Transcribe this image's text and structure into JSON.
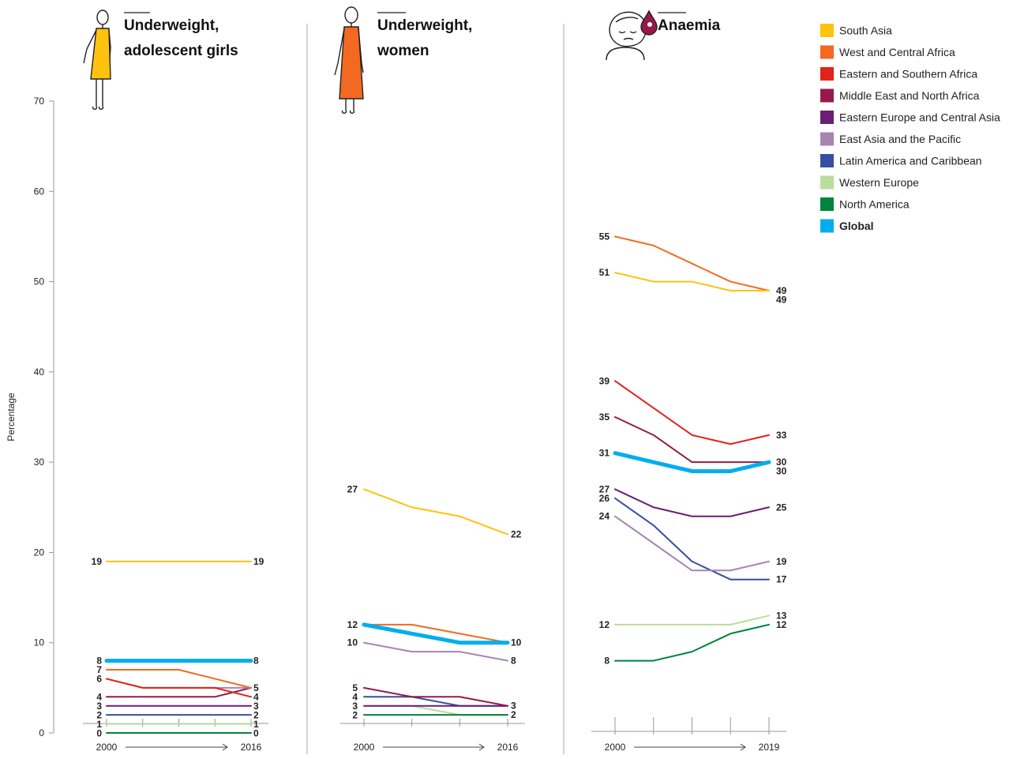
{
  "y_axis": {
    "label": "Percentage",
    "ticks": [
      0,
      10,
      20,
      30,
      40,
      50,
      60,
      70
    ],
    "range": [
      0,
      70
    ]
  },
  "series": [
    {
      "key": "south-asia",
      "name": "South Asia",
      "color": "#FFC20E"
    },
    {
      "key": "west-central-africa",
      "name": "West and Central Africa",
      "color": "#F26A21"
    },
    {
      "key": "eastern-southern-africa",
      "name": "Eastern and Southern Africa",
      "color": "#E2231A"
    },
    {
      "key": "mena",
      "name": "Middle East and North Africa",
      "color": "#961A49"
    },
    {
      "key": "eeca",
      "name": "Eastern Europe and Central Asia",
      "color": "#6A1E74"
    },
    {
      "key": "eap",
      "name": "East Asia and the Pacific",
      "color": "#A586B0"
    },
    {
      "key": "lac",
      "name": "Latin America and Caribbean",
      "color": "#374EA2"
    },
    {
      "key": "western-europe",
      "name": "Western Europe",
      "color": "#BBDC9A"
    },
    {
      "key": "north-america",
      "name": "North America",
      "color": "#00833D"
    },
    {
      "key": "global",
      "name": "Global",
      "color": "#00AEEF",
      "bold": true
    }
  ],
  "chart_data": [
    {
      "type": "line",
      "title": "Underweight, adolescent girls",
      "ylabel": "Percentage",
      "ylim": [
        0,
        70
      ],
      "x_start": "2000",
      "x_end": "2016",
      "points": 5,
      "series": [
        {
          "name": "South Asia",
          "values": [
            19,
            19,
            19,
            19,
            19
          ],
          "start_label": "19",
          "end_label": "19"
        },
        {
          "name": "West and Central Africa",
          "values": [
            7,
            7,
            7,
            6,
            5
          ],
          "start_label": "7",
          "end_label": ""
        },
        {
          "name": "Eastern and Southern Africa",
          "values": [
            6,
            5,
            5,
            5,
            4
          ],
          "start_label": "",
          "end_label": "4"
        },
        {
          "name": "Middle East and North Africa",
          "values": [
            4,
            4,
            4,
            4,
            5
          ],
          "start_label": "4",
          "end_label": "5"
        },
        {
          "name": "Eastern Europe and Central Asia",
          "values": [
            3,
            3,
            3,
            3,
            3
          ],
          "start_label": "3",
          "end_label": "3"
        },
        {
          "name": "East Asia and the Pacific",
          "values": [
            6,
            5,
            5,
            5,
            5
          ],
          "start_label": "6",
          "end_label": ""
        },
        {
          "name": "Latin America and Caribbean",
          "values": [
            2,
            2,
            2,
            2,
            2
          ],
          "start_label": "2",
          "end_label": "2"
        },
        {
          "name": "Western Europe",
          "values": [
            1,
            1,
            1,
            1,
            1
          ],
          "start_label": "1",
          "end_label": "1"
        },
        {
          "name": "North America",
          "values": [
            0,
            0,
            0,
            0,
            0
          ],
          "start_label": "0",
          "end_label": "0"
        },
        {
          "name": "Global",
          "values": [
            8,
            8,
            8,
            8,
            8
          ],
          "start_label": "8",
          "end_label": "8"
        }
      ]
    },
    {
      "type": "line",
      "title": "Underweight, women",
      "ylabel": "Percentage",
      "ylim": [
        0,
        70
      ],
      "x_start": "2000",
      "x_end": "2016",
      "points": 4,
      "series": [
        {
          "name": "South Asia",
          "values": [
            27,
            25,
            24,
            22
          ],
          "start_label": "27",
          "end_label": "22"
        },
        {
          "name": "West and Central Africa",
          "values": [
            12,
            12,
            11,
            10
          ],
          "start_label": "12",
          "end_label": ""
        },
        {
          "name": "Eastern and Southern Africa",
          "values": [
            12,
            11,
            10,
            10
          ],
          "start_label": "",
          "end_label": ""
        },
        {
          "name": "Middle East and North Africa",
          "values": [
            5,
            4,
            4,
            3
          ],
          "start_label": "5",
          "end_label": ""
        },
        {
          "name": "Eastern Europe and Central Asia",
          "values": [
            3,
            3,
            3,
            3
          ],
          "start_label": "3",
          "end_label": "3"
        },
        {
          "name": "East Asia and the Pacific",
          "values": [
            10,
            9,
            9,
            8
          ],
          "start_label": "10",
          "end_label": "8"
        },
        {
          "name": "Latin America and Caribbean",
          "values": [
            4,
            4,
            3,
            3
          ],
          "start_label": "4",
          "end_label": ""
        },
        {
          "name": "Western Europe",
          "values": [
            3,
            3,
            2,
            2
          ],
          "start_label": "",
          "end_label": ""
        },
        {
          "name": "North America",
          "values": [
            2,
            2,
            2,
            2
          ],
          "start_label": "2",
          "end_label": "2"
        },
        {
          "name": "Global",
          "values": [
            12,
            11,
            10,
            10
          ],
          "start_label": "",
          "end_label": "10"
        }
      ]
    },
    {
      "type": "line",
      "title": "Anaemia",
      "ylabel": "Percentage",
      "ylim": [
        0,
        70
      ],
      "x_start": "2000",
      "x_end": "2019",
      "points": 5,
      "series": [
        {
          "name": "South Asia",
          "values": [
            51,
            50,
            50,
            49,
            49
          ],
          "start_label": "51",
          "end_label": "49"
        },
        {
          "name": "West and Central Africa",
          "values": [
            55,
            54,
            52,
            50,
            49
          ],
          "start_label": "55",
          "end_label": "49"
        },
        {
          "name": "Eastern and Southern Africa",
          "values": [
            39,
            36,
            33,
            32,
            33
          ],
          "start_label": "39",
          "end_label": "33"
        },
        {
          "name": "Middle East and North Africa",
          "values": [
            35,
            33,
            30,
            30,
            30
          ],
          "start_label": "35",
          "end_label": "30"
        },
        {
          "name": "Eastern Europe and Central Asia",
          "values": [
            27,
            25,
            24,
            24,
            25
          ],
          "start_label": "27",
          "end_label": "25"
        },
        {
          "name": "East Asia and the Pacific",
          "values": [
            24,
            21,
            18,
            18,
            19
          ],
          "start_label": "24",
          "end_label": "19"
        },
        {
          "name": "Latin America and Caribbean",
          "values": [
            26,
            23,
            19,
            17,
            17
          ],
          "start_label": "26",
          "end_label": "17"
        },
        {
          "name": "Western Europe",
          "values": [
            12,
            12,
            12,
            12,
            13
          ],
          "start_label": "12",
          "end_label": "13"
        },
        {
          "name": "North America",
          "values": [
            8,
            8,
            9,
            11,
            12
          ],
          "start_label": "8",
          "end_label": "12"
        },
        {
          "name": "Global",
          "values": [
            31,
            30,
            29,
            29,
            30
          ],
          "start_label": "31",
          "end_label": "30"
        }
      ]
    }
  ]
}
